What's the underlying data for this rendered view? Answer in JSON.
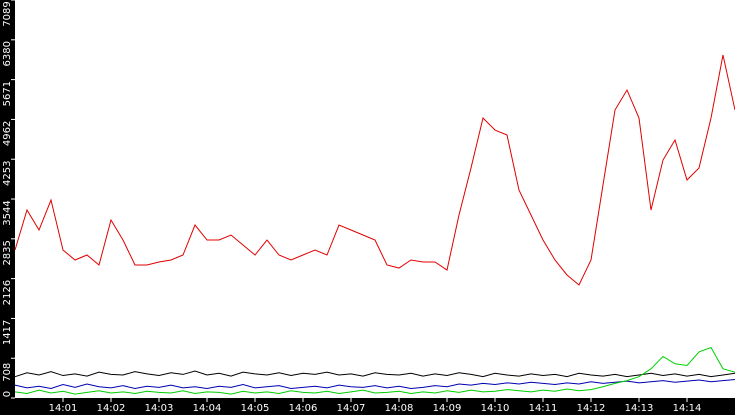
{
  "chart_data": {
    "type": "line",
    "x": [
      0,
      0.25,
      0.5,
      0.75,
      1,
      1.25,
      1.5,
      1.75,
      2,
      2.25,
      2.5,
      2.75,
      3,
      3.25,
      3.5,
      3.75,
      4,
      4.25,
      4.5,
      4.75,
      5,
      5.25,
      5.5,
      5.75,
      6,
      6.25,
      6.5,
      6.75,
      7,
      7.25,
      7.5,
      7.75,
      8,
      8.25,
      8.5,
      8.75,
      9,
      9.25,
      9.5,
      9.75,
      10,
      10.25,
      10.5,
      10.75,
      11,
      11.25,
      11.5,
      11.75,
      12,
      12.25,
      12.5,
      12.75,
      13,
      13.25,
      13.5,
      13.75,
      14,
      14.25,
      14.5,
      14.75,
      15
    ],
    "series": [
      {
        "color": "#e00000",
        "values": [
          2636,
          3348,
          2992,
          3526,
          2636,
          2458,
          2547,
          2369,
          3170,
          2814,
          2369,
          2369,
          2422,
          2458,
          2547,
          3081,
          2814,
          2814,
          2903,
          2725,
          2547,
          2814,
          2547,
          2458,
          2547,
          2636,
          2547,
          3081,
          2992,
          2903,
          2814,
          2369,
          2315,
          2458,
          2422,
          2422,
          2280,
          3259,
          4096,
          4987,
          4773,
          4684,
          3704,
          3259,
          2814,
          2458,
          2191,
          2013,
          2458,
          3794,
          5129,
          5485,
          4987,
          3348,
          4239,
          4595,
          3883,
          4096,
          4987,
          6109,
          5129
        ]
      },
      {
        "color": "#000000",
        "values": [
          380,
          450,
          410,
          470,
          400,
          430,
          390,
          460,
          420,
          410,
          470,
          430,
          400,
          450,
          420,
          480,
          410,
          440,
          390,
          460,
          430,
          410,
          450,
          400,
          440,
          420,
          460,
          410,
          430,
          390,
          450,
          420,
          410,
          440,
          390,
          430,
          400,
          450,
          420,
          380,
          440,
          410,
          390,
          430,
          400,
          420,
          380,
          440,
          410,
          390,
          420,
          380,
          410,
          440,
          400,
          430,
          390,
          420,
          380,
          410,
          440
        ]
      },
      {
        "color": "#0000b0",
        "values": [
          230,
          180,
          210,
          170,
          240,
          190,
          250,
          200,
          180,
          220,
          170,
          210,
          190,
          230,
          180,
          200,
          170,
          210,
          190,
          240,
          180,
          200,
          220,
          170,
          190,
          210,
          180,
          230,
          200,
          190,
          220,
          180,
          210,
          170,
          190,
          220,
          200,
          250,
          230,
          260,
          240,
          270,
          250,
          280,
          260,
          240,
          270,
          250,
          290,
          260,
          280,
          300,
          270,
          290,
          310,
          280,
          300,
          320,
          290,
          310,
          330
        ]
      },
      {
        "color": "#00d000",
        "values": [
          110,
          80,
          140,
          90,
          120,
          70,
          100,
          130,
          90,
          110,
          80,
          120,
          100,
          90,
          130,
          80,
          110,
          100,
          70,
          120,
          90,
          110,
          80,
          130,
          100,
          90,
          120,
          80,
          110,
          140,
          90,
          100,
          120,
          80,
          110,
          90,
          130,
          100,
          140,
          110,
          120,
          150,
          130,
          110,
          140,
          120,
          160,
          130,
          150,
          200,
          260,
          310,
          380,
          520,
          740,
          610,
          580,
          820,
          900,
          520,
          460
        ]
      }
    ],
    "ylim": [
      0,
      7089
    ],
    "yticks": [
      0,
      708,
      1417,
      2126,
      2835,
      3544,
      4253,
      4962,
      5671,
      6380,
      7089
    ],
    "xlim": [
      0,
      15
    ],
    "xticks": [
      {
        "value": 1,
        "label": "14:01"
      },
      {
        "value": 2,
        "label": "14:02"
      },
      {
        "value": 3,
        "label": "14:03"
      },
      {
        "value": 4,
        "label": "14:04"
      },
      {
        "value": 5,
        "label": "14:05"
      },
      {
        "value": 6,
        "label": "14:06"
      },
      {
        "value": 7,
        "label": "14:07"
      },
      {
        "value": 8,
        "label": "14:08"
      },
      {
        "value": 9,
        "label": "14:09"
      },
      {
        "value": 10,
        "label": "14:10"
      },
      {
        "value": 11,
        "label": "14:11"
      },
      {
        "value": 12,
        "label": "14:12"
      },
      {
        "value": 13,
        "label": "14:13"
      },
      {
        "value": 14,
        "label": "14:14"
      }
    ]
  }
}
